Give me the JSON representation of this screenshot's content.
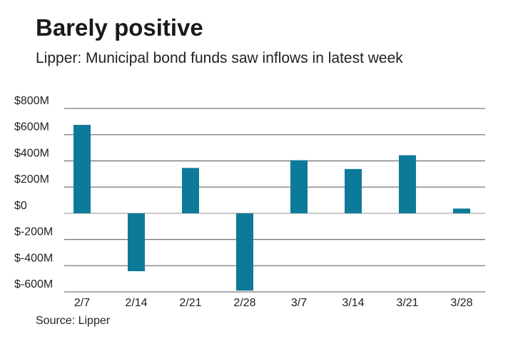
{
  "chart_data": {
    "type": "bar",
    "title": "Barely positive",
    "subtitle": "Lipper: Municipal bond funds saw inflows in latest week",
    "source": "Source: Lipper",
    "categories": [
      "2/7",
      "2/14",
      "2/21",
      "2/28",
      "3/7",
      "3/14",
      "3/21",
      "3/28"
    ],
    "values": [
      675,
      -442,
      346,
      -590,
      405,
      338,
      443,
      36
    ],
    "unit": "$M",
    "ylim": [
      -600,
      800
    ],
    "yticks": [
      800,
      600,
      400,
      200,
      0,
      -200,
      -400,
      -600
    ],
    "ytick_labels": [
      "$800M",
      "$600M",
      "$400M",
      "$200M",
      "$0",
      "$-200M",
      "$-400M",
      "$-600M"
    ],
    "grid": true,
    "bar_color": "#0e7a99",
    "xlabel": "",
    "ylabel": ""
  }
}
